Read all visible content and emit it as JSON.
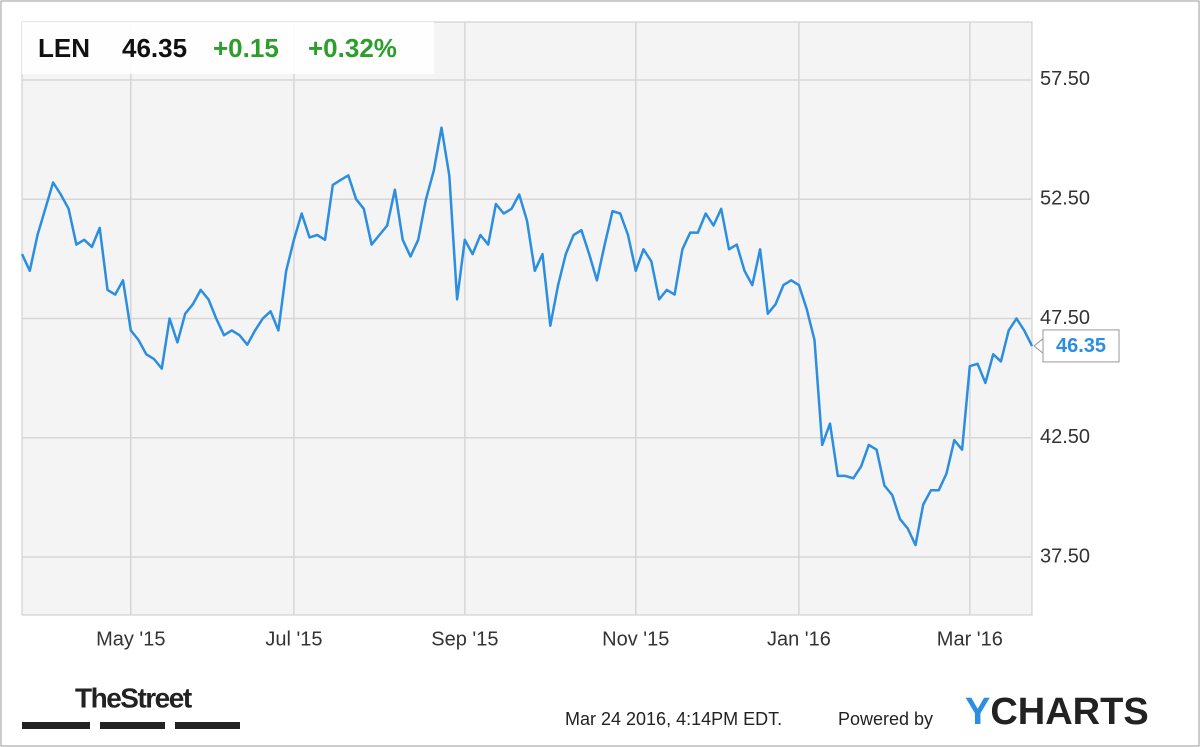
{
  "chart_data": {
    "type": "line",
    "ticker": "LEN",
    "change": "+0.15",
    "change_pct": "+0.32%",
    "timestamp": "Mar 24 2016, 4:14PM EDT.",
    "powered_by": "Powered by",
    "brand_parts": [
      "Y",
      "CHARTS"
    ],
    "source_logo": "TheStreet",
    "color": "#2b8ee0",
    "change_color": "#2c9e2c",
    "grid": true,
    "ylim": [
      35.07,
      59.93
    ],
    "yticks": [
      {
        "value": 37.5,
        "label": "37.50"
      },
      {
        "value": 42.5,
        "label": "42.50"
      },
      {
        "value": 47.5,
        "label": "47.50"
      },
      {
        "value": 52.5,
        "label": "52.50"
      },
      {
        "value": 57.5,
        "label": "57.50"
      }
    ],
    "categories": [
      null,
      null,
      null,
      null,
      null,
      null,
      null,
      null,
      null,
      null,
      null,
      null,
      null,
      null,
      "May '15",
      null,
      null,
      null,
      null,
      null,
      null,
      null,
      null,
      null,
      null,
      null,
      null,
      null,
      null,
      null,
      null,
      null,
      null,
      null,
      null,
      "Jul '15",
      null,
      null,
      null,
      null,
      null,
      null,
      null,
      null,
      null,
      null,
      null,
      null,
      null,
      null,
      null,
      null,
      null,
      null,
      null,
      null,
      null,
      "Sep '15",
      null,
      null,
      null,
      null,
      null,
      null,
      null,
      null,
      null,
      null,
      null,
      null,
      null,
      null,
      null,
      null,
      null,
      null,
      null,
      null,
      null,
      "Nov '15",
      null,
      null,
      null,
      null,
      null,
      null,
      null,
      null,
      null,
      null,
      null,
      null,
      null,
      null,
      null,
      null,
      null,
      null,
      null,
      null,
      "Jan '16",
      null,
      null,
      null,
      null,
      null,
      null,
      null,
      null,
      null,
      null,
      null,
      null,
      null,
      null,
      null,
      null,
      null,
      null,
      null,
      null,
      null,
      "Mar '16",
      null,
      null,
      null,
      null,
      null,
      null,
      null,
      null
    ],
    "values": [
      50.2,
      49.5,
      51.0,
      52.1,
      53.2,
      52.7,
      52.1,
      50.6,
      50.8,
      50.5,
      51.3,
      48.7,
      48.5,
      49.1,
      47.0,
      46.6,
      46.0,
      45.8,
      45.4,
      47.5,
      46.5,
      47.7,
      48.1,
      48.7,
      48.3,
      47.5,
      46.8,
      47.0,
      46.8,
      46.4,
      47.0,
      47.5,
      47.8,
      47.0,
      49.5,
      50.8,
      51.9,
      50.9,
      51.0,
      50.8,
      53.1,
      53.3,
      53.5,
      52.5,
      52.1,
      50.6,
      51.0,
      51.4,
      52.9,
      50.8,
      50.1,
      50.8,
      52.5,
      53.7,
      55.5,
      53.5,
      48.3,
      50.8,
      50.2,
      51.0,
      50.6,
      52.3,
      51.9,
      52.1,
      52.7,
      51.6,
      49.5,
      50.2,
      47.2,
      48.9,
      50.2,
      51.0,
      51.2,
      50.2,
      49.1,
      50.6,
      52.0,
      51.9,
      51.0,
      49.5,
      50.4,
      49.9,
      48.3,
      48.7,
      48.5,
      50.4,
      51.1,
      51.1,
      51.9,
      51.4,
      52.1,
      50.4,
      50.6,
      49.5,
      48.9,
      50.4,
      47.7,
      48.1,
      48.9,
      49.1,
      48.9,
      47.9,
      46.6,
      42.2,
      43.1,
      40.9,
      40.9,
      40.8,
      41.3,
      42.2,
      42.0,
      40.5,
      40.1,
      39.1,
      38.7,
      38.0,
      39.7,
      40.3,
      40.3,
      41.0,
      42.4,
      42.0,
      45.5,
      45.6,
      44.8,
      46.0,
      45.7,
      47.0,
      47.5,
      47.0,
      46.35
    ]
  }
}
